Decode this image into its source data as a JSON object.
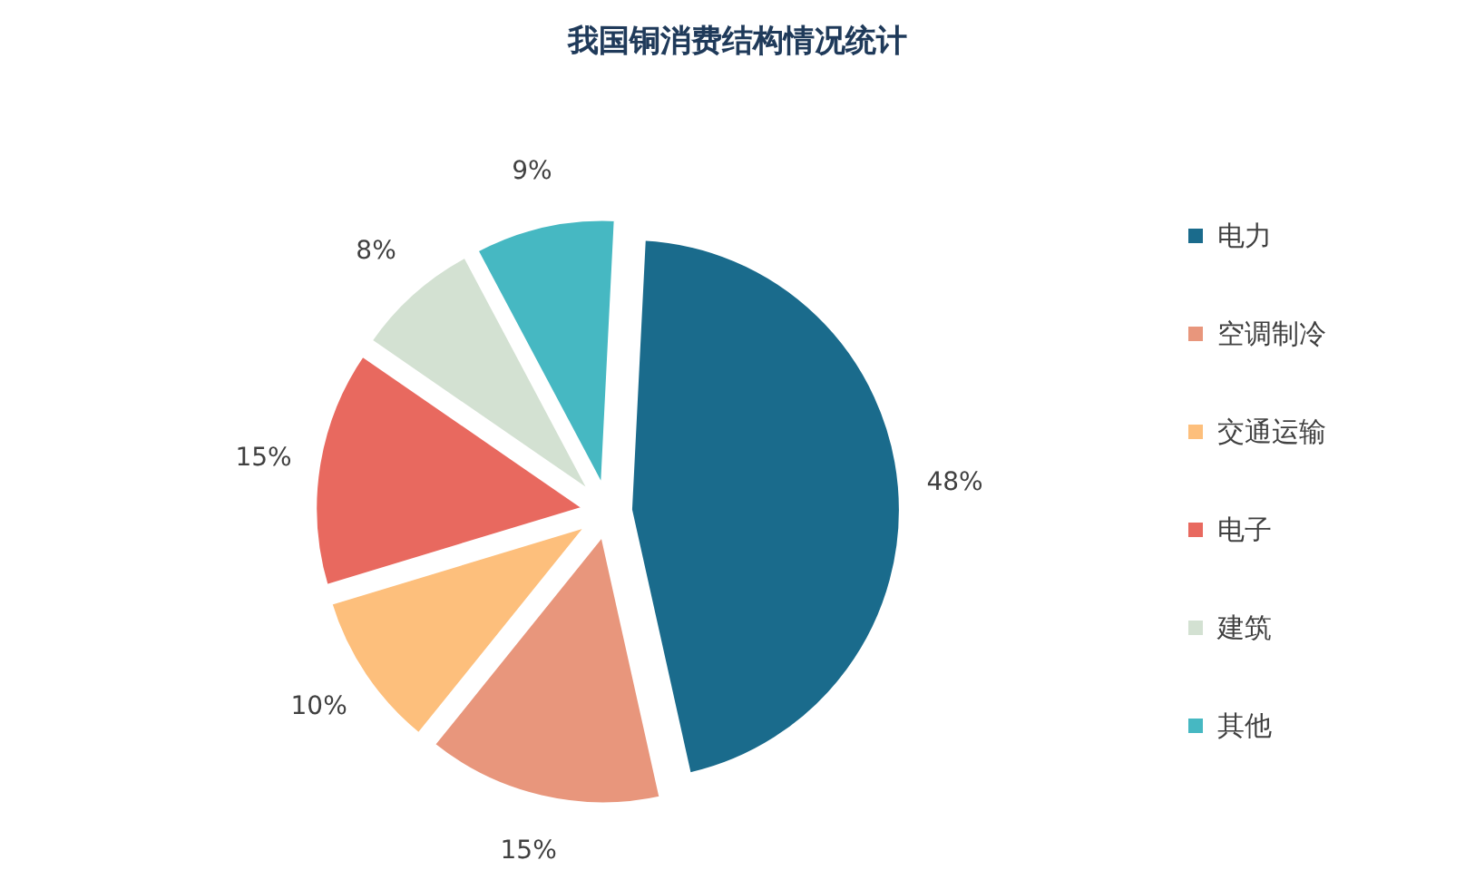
{
  "chart_data": {
    "type": "pie",
    "title": "我国铜消费结构情况统计",
    "categories": [
      "电力",
      "空调制冷",
      "交通运输",
      "电子",
      "建筑",
      "其他"
    ],
    "values": [
      48,
      15,
      10,
      15,
      8,
      9
    ],
    "value_labels": [
      "48%",
      "15%",
      "10%",
      "15%",
      "8%",
      "9%"
    ],
    "colors": [
      "#1a6b8c",
      "#e8967c",
      "#fdbf7c",
      "#e8695f",
      "#d3e1d2",
      "#46b8c2"
    ],
    "legend": "right"
  }
}
